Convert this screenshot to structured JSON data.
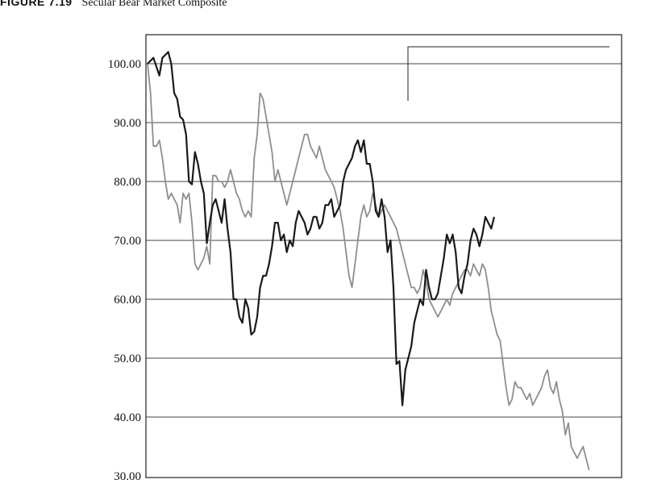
{
  "figure": {
    "number": "FIGURE 7.19",
    "title": "Secular Bear Market Composite"
  },
  "colors": {
    "series_dark": "#1a1a1a",
    "series_gray": "#8e8e8e",
    "gridline": "#444444",
    "frame": "#222222"
  },
  "chart_data": {
    "type": "line",
    "title": "Secular Bear Market Composite",
    "xlabel": "",
    "ylabel": "",
    "ylim": [
      30,
      105
    ],
    "yticks": [
      "100.00",
      "90.00",
      "80.00",
      "70.00",
      "60.00",
      "50.00",
      "40.00",
      "30.00"
    ],
    "grid": true,
    "legend": "top-right",
    "x": "period index 0–160",
    "series": [
      {
        "values": [
          [
            0,
            100
          ],
          [
            2,
            101
          ],
          [
            4,
            98
          ],
          [
            5,
            101
          ],
          [
            6,
            101.5
          ],
          [
            7,
            102
          ],
          [
            8,
            100
          ],
          [
            9,
            95
          ],
          [
            10,
            94
          ],
          [
            11,
            91
          ],
          [
            12,
            90.5
          ],
          [
            13,
            88
          ],
          [
            14,
            80
          ],
          [
            15,
            79.5
          ],
          [
            16,
            85
          ],
          [
            17,
            83
          ],
          [
            18,
            80
          ],
          [
            19,
            78
          ],
          [
            20,
            69.5
          ],
          [
            21,
            73
          ],
          [
            22,
            76
          ],
          [
            23,
            77
          ],
          [
            24,
            75
          ],
          [
            25,
            73
          ],
          [
            26,
            77
          ],
          [
            27,
            72
          ],
          [
            28,
            68
          ],
          [
            29,
            60
          ],
          [
            30,
            60
          ],
          [
            31,
            57
          ],
          [
            32,
            56
          ],
          [
            33,
            60
          ],
          [
            34,
            58.5
          ],
          [
            35,
            54
          ],
          [
            36,
            54.5
          ],
          [
            37,
            57
          ],
          [
            38,
            62
          ],
          [
            39,
            64
          ],
          [
            40,
            64
          ],
          [
            41,
            66
          ],
          [
            42,
            69
          ],
          [
            43,
            73
          ],
          [
            44,
            73
          ],
          [
            45,
            70
          ],
          [
            46,
            71
          ],
          [
            47,
            68
          ],
          [
            48,
            70
          ],
          [
            49,
            69
          ],
          [
            50,
            73
          ],
          [
            51,
            75
          ],
          [
            52,
            74
          ],
          [
            53,
            73
          ],
          [
            54,
            71
          ],
          [
            55,
            72
          ],
          [
            56,
            74
          ],
          [
            57,
            74
          ],
          [
            58,
            72
          ],
          [
            59,
            73
          ],
          [
            60,
            76
          ],
          [
            61,
            76
          ],
          [
            62,
            77
          ],
          [
            63,
            74
          ],
          [
            64,
            75
          ],
          [
            65,
            76
          ],
          [
            66,
            80
          ],
          [
            67,
            82
          ],
          [
            68,
            83
          ],
          [
            69,
            84
          ],
          [
            70,
            86
          ],
          [
            71,
            87
          ],
          [
            72,
            85
          ],
          [
            73,
            87
          ],
          [
            74,
            83
          ],
          [
            75,
            83
          ],
          [
            76,
            80
          ],
          [
            77,
            75
          ],
          [
            78,
            74
          ],
          [
            79,
            77
          ],
          [
            80,
            74
          ],
          [
            81,
            68
          ],
          [
            82,
            70
          ],
          [
            83,
            62
          ],
          [
            84,
            49
          ],
          [
            85,
            49.5
          ],
          [
            86,
            42
          ],
          [
            87,
            48
          ],
          [
            88,
            50
          ],
          [
            89,
            52
          ],
          [
            90,
            56
          ],
          [
            91,
            58
          ],
          [
            92,
            60
          ],
          [
            93,
            59
          ],
          [
            94,
            65
          ],
          [
            95,
            62
          ],
          [
            96,
            60
          ],
          [
            97,
            60
          ],
          [
            98,
            61
          ],
          [
            99,
            64
          ],
          [
            100,
            67
          ],
          [
            101,
            71
          ],
          [
            102,
            69.5
          ],
          [
            103,
            71
          ],
          [
            104,
            68
          ],
          [
            105,
            62
          ],
          [
            106,
            61
          ],
          [
            107,
            64
          ],
          [
            108,
            66
          ],
          [
            109,
            70
          ],
          [
            110,
            72
          ],
          [
            111,
            71
          ],
          [
            112,
            69
          ],
          [
            113,
            71
          ],
          [
            114,
            74
          ],
          [
            115,
            73
          ],
          [
            116,
            72
          ],
          [
            117,
            74
          ]
        ]
      },
      {
        "values": [
          [
            0,
            100
          ],
          [
            1,
            95
          ],
          [
            2,
            86
          ],
          [
            3,
            86
          ],
          [
            4,
            87
          ],
          [
            5,
            84
          ],
          [
            6,
            80
          ],
          [
            7,
            77
          ],
          [
            8,
            78
          ],
          [
            9,
            77
          ],
          [
            10,
            76
          ],
          [
            11,
            73
          ],
          [
            12,
            78
          ],
          [
            13,
            77
          ],
          [
            14,
            78
          ],
          [
            15,
            73
          ],
          [
            16,
            66
          ],
          [
            17,
            65
          ],
          [
            18,
            66
          ],
          [
            19,
            67
          ],
          [
            20,
            69
          ],
          [
            21,
            66
          ],
          [
            22,
            81
          ],
          [
            23,
            81
          ],
          [
            24,
            80
          ],
          [
            25,
            80
          ],
          [
            26,
            79
          ],
          [
            27,
            80
          ],
          [
            28,
            82
          ],
          [
            29,
            80
          ],
          [
            30,
            78
          ],
          [
            31,
            77
          ],
          [
            32,
            75
          ],
          [
            33,
            74
          ],
          [
            34,
            75
          ],
          [
            35,
            74
          ],
          [
            36,
            84
          ],
          [
            37,
            88
          ],
          [
            38,
            95
          ],
          [
            39,
            94
          ],
          [
            40,
            91
          ],
          [
            41,
            88
          ],
          [
            42,
            85
          ],
          [
            43,
            80
          ],
          [
            44,
            82
          ],
          [
            45,
            80
          ],
          [
            46,
            78
          ],
          [
            47,
            76
          ],
          [
            48,
            78
          ],
          [
            49,
            80
          ],
          [
            50,
            82
          ],
          [
            51,
            84
          ],
          [
            52,
            86
          ],
          [
            53,
            88
          ],
          [
            54,
            88
          ],
          [
            55,
            86
          ],
          [
            56,
            85
          ],
          [
            57,
            84
          ],
          [
            58,
            86
          ],
          [
            59,
            84
          ],
          [
            60,
            82
          ],
          [
            61,
            81
          ],
          [
            62,
            80
          ],
          [
            63,
            79
          ],
          [
            64,
            77
          ],
          [
            65,
            75
          ],
          [
            66,
            72
          ],
          [
            67,
            68
          ],
          [
            68,
            64
          ],
          [
            69,
            62
          ],
          [
            70,
            66
          ],
          [
            71,
            70
          ],
          [
            72,
            74
          ],
          [
            73,
            76
          ],
          [
            74,
            74
          ],
          [
            75,
            75
          ],
          [
            76,
            78
          ],
          [
            77,
            76
          ],
          [
            78,
            74
          ],
          [
            79,
            75
          ],
          [
            80,
            76
          ],
          [
            81,
            75
          ],
          [
            82,
            74
          ],
          [
            83,
            73
          ],
          [
            84,
            72
          ],
          [
            85,
            70
          ],
          [
            86,
            68
          ],
          [
            87,
            66
          ],
          [
            88,
            64
          ],
          [
            89,
            62
          ],
          [
            90,
            62
          ],
          [
            91,
            61
          ],
          [
            92,
            62
          ],
          [
            93,
            65
          ],
          [
            94,
            63
          ],
          [
            95,
            60
          ],
          [
            96,
            59
          ],
          [
            97,
            58
          ],
          [
            98,
            57
          ],
          [
            99,
            58
          ],
          [
            100,
            59
          ],
          [
            101,
            60
          ],
          [
            102,
            59
          ],
          [
            103,
            61
          ],
          [
            104,
            62
          ],
          [
            105,
            63
          ],
          [
            106,
            64
          ],
          [
            107,
            65
          ],
          [
            108,
            65
          ],
          [
            109,
            64
          ],
          [
            110,
            66
          ],
          [
            111,
            65
          ],
          [
            112,
            64
          ],
          [
            113,
            66
          ],
          [
            114,
            65
          ],
          [
            115,
            62
          ],
          [
            116,
            58
          ],
          [
            117,
            56
          ],
          [
            118,
            54
          ],
          [
            119,
            53
          ],
          [
            120,
            49
          ],
          [
            121,
            45
          ],
          [
            122,
            42
          ],
          [
            123,
            43
          ],
          [
            124,
            46
          ],
          [
            125,
            45
          ],
          [
            126,
            45
          ],
          [
            127,
            44
          ],
          [
            128,
            43
          ],
          [
            129,
            44
          ],
          [
            130,
            42
          ],
          [
            131,
            43
          ],
          [
            132,
            44
          ],
          [
            133,
            45
          ],
          [
            134,
            47
          ],
          [
            135,
            48
          ],
          [
            136,
            45
          ],
          [
            137,
            44
          ],
          [
            138,
            46
          ],
          [
            139,
            43
          ],
          [
            140,
            41
          ],
          [
            141,
            37
          ],
          [
            142,
            39
          ],
          [
            143,
            35
          ],
          [
            144,
            34
          ],
          [
            145,
            33
          ],
          [
            146,
            34
          ],
          [
            147,
            35
          ],
          [
            148,
            33
          ],
          [
            149,
            31
          ]
        ]
      }
    ]
  }
}
